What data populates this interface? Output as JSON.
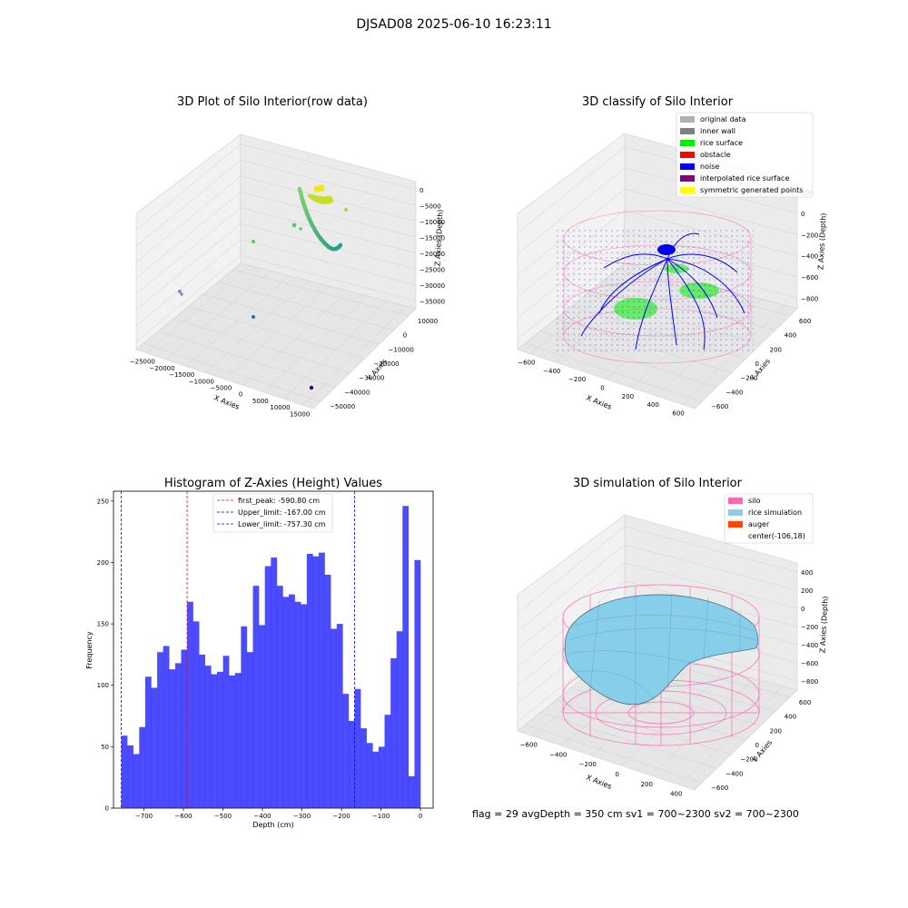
{
  "suptitle": "DJSAD08 2025-06-10 16:23:11",
  "info_text": "flag = 29  avgDepth = 350 cm  sv1 = 700~2300  sv2 = 700~2300",
  "chart_data": [
    {
      "type": "scatter",
      "title": "3D Plot of Silo Interior(row data)",
      "xlabel": "X Axies",
      "ylabel": "Y Axies",
      "zlabel": "Z Axies (Depth)",
      "x_ticks": [
        "−25000",
        "−20000",
        "−15000",
        "−10000",
        "−5000",
        "0",
        "5000",
        "10000",
        "15000"
      ],
      "y_ticks": [
        "10000",
        "0",
        "−10000",
        "−20000",
        "−30000",
        "−40000",
        "−50000"
      ],
      "z_ticks": [
        "0",
        "−5000",
        "−10000",
        "−15000",
        "−20000",
        "−25000",
        "−30000",
        "−35000"
      ],
      "xlim": [
        -27000,
        17000
      ],
      "ylim": [
        -52000,
        13000
      ],
      "zlim": [
        -37000,
        1500
      ]
    },
    {
      "type": "scatter",
      "title": "3D classify of Silo Interior",
      "xlabel": "X Axies",
      "ylabel": "Y Axies",
      "zlabel": "Z Axies (Depth)",
      "x_ticks": [
        "−600",
        "−400",
        "−200",
        "0",
        "200",
        "400",
        "600"
      ],
      "y_ticks": [
        "600",
        "400",
        "200",
        "0",
        "−200",
        "−400",
        "−600"
      ],
      "z_ticks": [
        "200",
        "0",
        "−200",
        "−400",
        "−600",
        "−800"
      ],
      "legend": [
        {
          "label": "original data",
          "color": "#b0b0b0"
        },
        {
          "label": "inner wall",
          "color": "#808080"
        },
        {
          "label": "rice surface",
          "color": "#00ee00"
        },
        {
          "label": "obstacle",
          "color": "#ff0000"
        },
        {
          "label": "noise",
          "color": "#0000ee"
        },
        {
          "label": "interpolated rice surface",
          "color": "#800080"
        },
        {
          "label": "symmetric generated points",
          "color": "#ffff00"
        }
      ],
      "legend_position": "upper right"
    },
    {
      "type": "bar",
      "title": "Histogram of Z-Axies (Height) Values",
      "xlabel": "Depth (cm)",
      "ylabel": "Frequency",
      "xlim": [
        -777,
        32
      ],
      "ylim": [
        0,
        258
      ],
      "x_ticks": [
        -700,
        -600,
        -500,
        -400,
        -300,
        -200,
        -100,
        0
      ],
      "y_ticks": [
        0,
        50,
        100,
        150,
        200,
        250
      ],
      "bin_range": [
        -757.3,
        0
      ],
      "values": [
        59,
        51,
        44,
        66,
        107,
        98,
        127,
        132,
        113,
        118,
        129,
        168,
        152,
        125,
        116,
        109,
        111,
        124,
        108,
        110,
        148,
        127,
        181,
        149,
        197,
        204,
        181,
        172,
        174,
        168,
        166,
        207,
        205,
        208,
        190,
        146,
        150,
        93,
        71,
        97,
        65,
        53,
        46,
        50,
        76,
        122,
        144,
        246,
        26,
        202
      ],
      "color": "#0000ff",
      "lines": [
        {
          "label": "first_peak: -590.80 cm",
          "x": -590.8,
          "color": "#ff0000"
        },
        {
          "label": "Upper_limit: -167.00 cm",
          "x": -167.0,
          "color": "#0000ff"
        },
        {
          "label": "Lower_limit: -757.30 cm",
          "x": -757.3,
          "color": "#0000ff"
        }
      ],
      "legend_position": "upper center"
    },
    {
      "type": "surface",
      "title": "3D simulation of Silo Interior",
      "xlabel": "X Axies",
      "ylabel": "Y Axies",
      "zlabel": "Z Axies (Depth)",
      "x_ticks": [
        "−600",
        "−400",
        "−200",
        "0",
        "200",
        "400"
      ],
      "y_ticks": [
        "600",
        "400",
        "200",
        "0",
        "−200",
        "−400",
        "−600"
      ],
      "z_ticks": [
        "400",
        "200",
        "0",
        "−200",
        "−400",
        "−600",
        "−800"
      ],
      "legend": [
        {
          "label": "silo",
          "color": "#ff69b4"
        },
        {
          "label": "rice simulation",
          "color": "#87ceeb"
        },
        {
          "label": "auger",
          "color": "#ff4500"
        },
        {
          "label": "center(-106,18)",
          "color": ""
        }
      ],
      "legend_position": "upper right"
    }
  ]
}
